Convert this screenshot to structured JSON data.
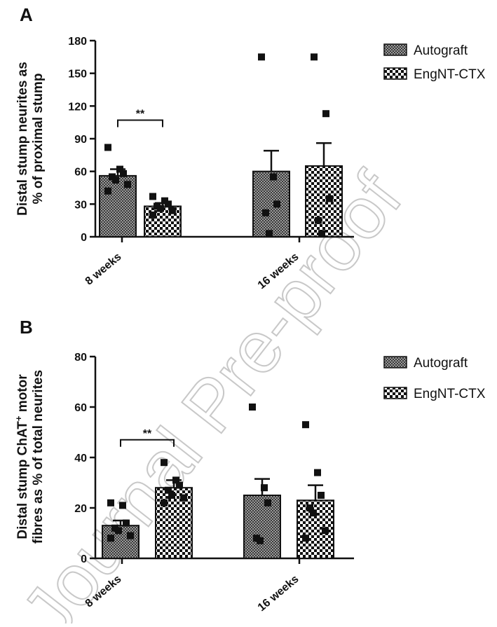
{
  "watermark": "Journal Pre-proof",
  "chart_data": [
    {
      "panel": "A",
      "type": "bar",
      "ylabel_line1": "Distal stump neurites as",
      "ylabel_line2": "% of proximal stump",
      "ylim": [
        0,
        180
      ],
      "yticks": [
        0,
        30,
        60,
        90,
        120,
        150,
        180
      ],
      "ytick_labels": [
        "0",
        "30",
        "60",
        "90",
        "120",
        "150",
        "180"
      ],
      "categories": [
        "8 weeks",
        "16 weeks"
      ],
      "series": [
        {
          "name": "Autograft",
          "pattern": "dense",
          "values": [
            56,
            60
          ],
          "errors": [
            6,
            19
          ],
          "points": [
            [
              82,
              62,
              58,
              55,
              52,
              48,
              42
            ],
            [
              165,
              55,
              30,
              22,
              3
            ]
          ]
        },
        {
          "name": "EngNT-CTX",
          "pattern": "check",
          "values": [
            28,
            65
          ],
          "errors": [
            3,
            21
          ],
          "points": [
            [
              37,
              33,
              30,
              28,
              26,
              24,
              20
            ],
            [
              165,
              113,
              35,
              15,
              3
            ]
          ]
        }
      ],
      "significance": [
        {
          "category": "8 weeks",
          "label": "**",
          "y": 107
        }
      ]
    },
    {
      "panel": "B",
      "type": "bar",
      "ylabel_line1": "Distal stump ChAT",
      "ylabel_sup": "+",
      "ylabel_after": " motor",
      "ylabel_line2": "fibres as % of total neurites",
      "ylim": [
        0,
        80
      ],
      "yticks": [
        0,
        20,
        40,
        60,
        80
      ],
      "ytick_labels": [
        "0",
        "20",
        "40",
        "60",
        "80"
      ],
      "categories": [
        "8 weeks",
        "16 weeks"
      ],
      "series": [
        {
          "name": "Autograft",
          "pattern": "dense",
          "values": [
            13,
            25
          ],
          "errors": [
            2,
            6.5
          ],
          "points": [
            [
              22,
              21,
              14,
              12,
              11,
              9,
              8
            ],
            [
              60,
              28,
              22,
              8,
              7
            ]
          ]
        },
        {
          "name": "EngNT-CTX",
          "pattern": "check",
          "values": [
            28,
            23
          ],
          "errors": [
            3,
            6
          ],
          "points": [
            [
              38,
              31,
              29,
              27,
              25,
              24,
              22
            ],
            [
              53,
              34,
              25,
              20,
              18,
              11,
              8
            ]
          ]
        }
      ],
      "significance": [
        {
          "category": "8 weeks",
          "label": "**",
          "y": 47
        }
      ]
    }
  ]
}
